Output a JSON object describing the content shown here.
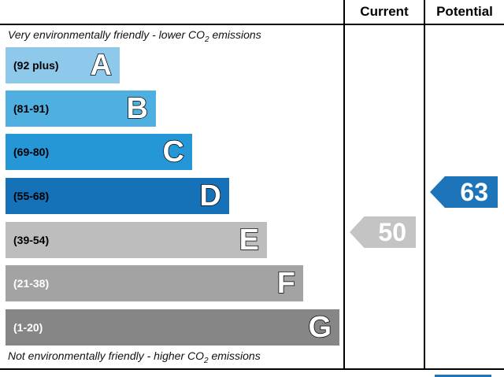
{
  "header": {
    "current_label": "Current",
    "potential_label": "Potential"
  },
  "captions": {
    "top_prefix": "Very environmentally friendly - lower C",
    "top_o": "O",
    "top_sub": "2",
    "top_suffix": " emissions",
    "bottom_prefix": "Not environmentally friendly - higher C",
    "bottom_o": "O",
    "bottom_sub": "2",
    "bottom_suffix": " emissions"
  },
  "bands": [
    {
      "range": "(92 plus)",
      "letter": "A",
      "color": "#8ec9ec",
      "text_color": "#000000"
    },
    {
      "range": "(81-91)",
      "letter": "B",
      "color": "#4fafe0",
      "text_color": "#000000"
    },
    {
      "range": "(69-80)",
      "letter": "C",
      "color": "#2596d6",
      "text_color": "#000000"
    },
    {
      "range": "(55-68)",
      "letter": "D",
      "color": "#1571b8",
      "text_color": "#000000"
    },
    {
      "range": "(39-54)",
      "letter": "E",
      "color": "#bdbdbd",
      "text_color": "#000000"
    },
    {
      "range": "(21-38)",
      "letter": "F",
      "color": "#a3a3a3",
      "text_color": "#ffffff"
    },
    {
      "range": "(1-20)",
      "letter": "G",
      "color": "#868686",
      "text_color": "#ffffff"
    }
  ],
  "ratings": {
    "current": {
      "value": "50",
      "color": "#c4c4c4"
    },
    "potential": {
      "value": "63",
      "color": "#1e74b8"
    }
  }
}
